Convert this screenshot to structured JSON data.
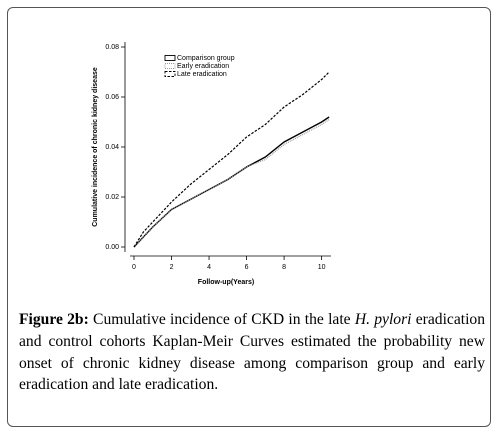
{
  "chart_data": {
    "type": "line",
    "x_label": "Follow-up(Years)",
    "y_label": "Cumulative incidence of chronic kidney disease",
    "x": [
      0,
      0.5,
      1,
      2,
      3,
      4,
      5,
      6,
      7,
      8,
      9,
      10,
      10.4
    ],
    "series": [
      {
        "name": "Comparison group",
        "color": "#000000",
        "style": "solid",
        "values": [
          0,
          0.004,
          0.008,
          0.015,
          0.019,
          0.023,
          0.027,
          0.032,
          0.036,
          0.042,
          0.046,
          0.05,
          0.052
        ]
      },
      {
        "name": "Early eradication",
        "color": "#999999",
        "style": "dotted",
        "values": [
          0,
          0.004,
          0.008,
          0.015,
          0.019,
          0.023,
          0.027,
          0.032,
          0.035,
          0.041,
          0.045,
          0.049,
          0.051
        ]
      },
      {
        "name": "Late eradication",
        "color": "#000000",
        "style": "dashed",
        "values": [
          0,
          0.006,
          0.01,
          0.018,
          0.025,
          0.031,
          0.037,
          0.044,
          0.049,
          0.056,
          0.061,
          0.067,
          0.07
        ]
      }
    ],
    "xlim": [
      0,
      10.5
    ],
    "xticks": [
      0,
      2,
      4,
      6,
      8,
      10
    ],
    "ylim": [
      0,
      0.08
    ],
    "yticks": [
      {
        "value": 0,
        "label": "0.00"
      },
      0.02,
      0.04,
      0.06,
      0.08
    ],
    "legend": "upper left",
    "grid": false
  },
  "caption": {
    "label": "Figure 2b:",
    "text_1": "Cumulative incidence of CKD in the late",
    "italic": "H. pylori",
    "text_2": "eradication and control cohorts Kaplan-Meir Curves estimated the probability new onset of chronic kidney disease among comparison group and early eradication and late eradication."
  }
}
